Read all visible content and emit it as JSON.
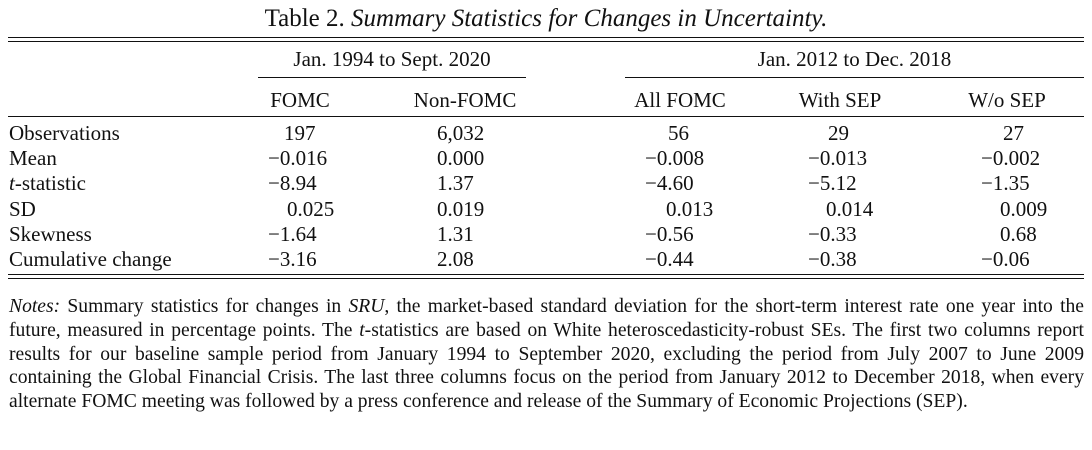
{
  "caption": {
    "label": "Table 2.",
    "title": "Summary Statistics for Changes in Uncertainty."
  },
  "table": {
    "groups": [
      "Jan. 1994 to Sept. 2020",
      "Jan. 2012 to Dec. 2018"
    ],
    "columns": [
      "FOMC",
      "Non-FOMC",
      "All FOMC",
      "With SEP",
      "W/o SEP"
    ],
    "rows": [
      {
        "label": "Observations",
        "values": [
          "197",
          "6,032",
          "56",
          "29",
          "27"
        ]
      },
      {
        "label": "Mean",
        "values": [
          "−0.016",
          "0.000",
          "−0.008",
          "−0.013",
          "−0.002"
        ]
      },
      {
        "label_italic": "t",
        "label": "-statistic",
        "values": [
          "−8.94",
          "1.37",
          "−4.60",
          "−5.12",
          "−1.35"
        ]
      },
      {
        "label": "SD",
        "values": [
          "0.025",
          "0.019",
          "0.013",
          "0.014",
          "0.009"
        ]
      },
      {
        "label": "Skewness",
        "values": [
          "−1.64",
          "1.31",
          "−0.56",
          "−0.33",
          "0.68"
        ]
      },
      {
        "label": "Cumulative change",
        "values": [
          "−3.16",
          "2.08",
          "−0.44",
          "−0.38",
          "−0.06"
        ]
      }
    ]
  },
  "notes": {
    "label": "Notes:",
    "p1": " Summary statistics for changes in ",
    "sru": "SRU",
    "p2": ", the market-based standard deviation for the short-term interest rate one year into the future, measured in percentage points. The ",
    "t": "t",
    "p3": "-statistics are based on White heteroscedasticity-robust SEs. The first two columns report results for our baseline sample period from January 1994 to September 2020, excluding the period from July 2007 to June 2009 containing the Global Financial Crisis. The last three columns focus on the period from January 2012 to December 2018, when every alternate FOMC meeting was followed by a press conference and release of the Summary of Economic Projections (SEP)."
  }
}
